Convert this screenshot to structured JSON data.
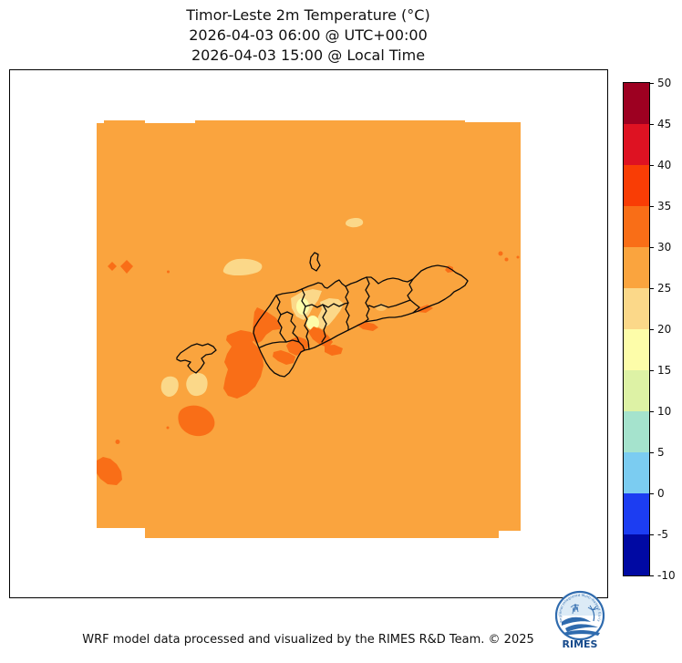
{
  "title": {
    "line1": "Timor-Leste 2m Temperature (°C)",
    "line2": "2026-04-03 06:00 @ UTC+00:00",
    "line3": "2026-04-03 15:00 @ Local Time"
  },
  "footer": {
    "credit": "WRF model data processed and visualized by the RIMES R&D Team. © 2025"
  },
  "logo": {
    "name": "RIMES",
    "ring_text": "Regional Integrated Multi-Hazard Early Warning System",
    "brand_color": "#2f6bae"
  },
  "colorbar": {
    "unit": "°C",
    "ticks": [
      50,
      45,
      40,
      35,
      30,
      25,
      20,
      15,
      10,
      5,
      0,
      -5,
      -10
    ],
    "segments": [
      {
        "min": 45,
        "max": 50,
        "color": "#9D0021"
      },
      {
        "min": 40,
        "max": 45,
        "color": "#DE1222"
      },
      {
        "min": 35,
        "max": 40,
        "color": "#F93D05"
      },
      {
        "min": 30,
        "max": 35,
        "color": "#F96E17"
      },
      {
        "min": 25,
        "max": 30,
        "color": "#FAA43E"
      },
      {
        "min": 20,
        "max": 25,
        "color": "#FBD889"
      },
      {
        "min": 15,
        "max": 20,
        "color": "#FDFDA9"
      },
      {
        "min": 10,
        "max": 15,
        "color": "#DDF2A5"
      },
      {
        "min": 5,
        "max": 10,
        "color": "#A5E3CD"
      },
      {
        "min": 0,
        "max": 5,
        "color": "#7BCCF1"
      },
      {
        "min": -5,
        "max": 0,
        "color": "#1C3DF2"
      },
      {
        "min": -10,
        "max": -5,
        "color": "#0009A3"
      }
    ]
  },
  "chart_data": {
    "type": "heatmap",
    "title": "Timor-Leste 2m Temperature (°C)",
    "valid_time_utc": "2026-04-03 06:00 @ UTC+00:00",
    "valid_time_local": "2026-04-03 15:00 @ Local Time",
    "variable": "2m Temperature",
    "unit": "°C",
    "scale_ticks": [
      50,
      45,
      40,
      35,
      30,
      25,
      20,
      15,
      10,
      5,
      0,
      -5,
      -10
    ],
    "legend_position": "right",
    "observed_bins": {
      "background_ocean_and_land": "25–30",
      "warm_coastal_patches": "30–35",
      "highland_cool_patches": "20–25",
      "coolest_highland_spots": "15–20"
    },
    "overlays": [
      "Timor-Leste municipality boundaries (black outlines)",
      "Oecusse enclave outline",
      "Atauro island outline"
    ]
  }
}
